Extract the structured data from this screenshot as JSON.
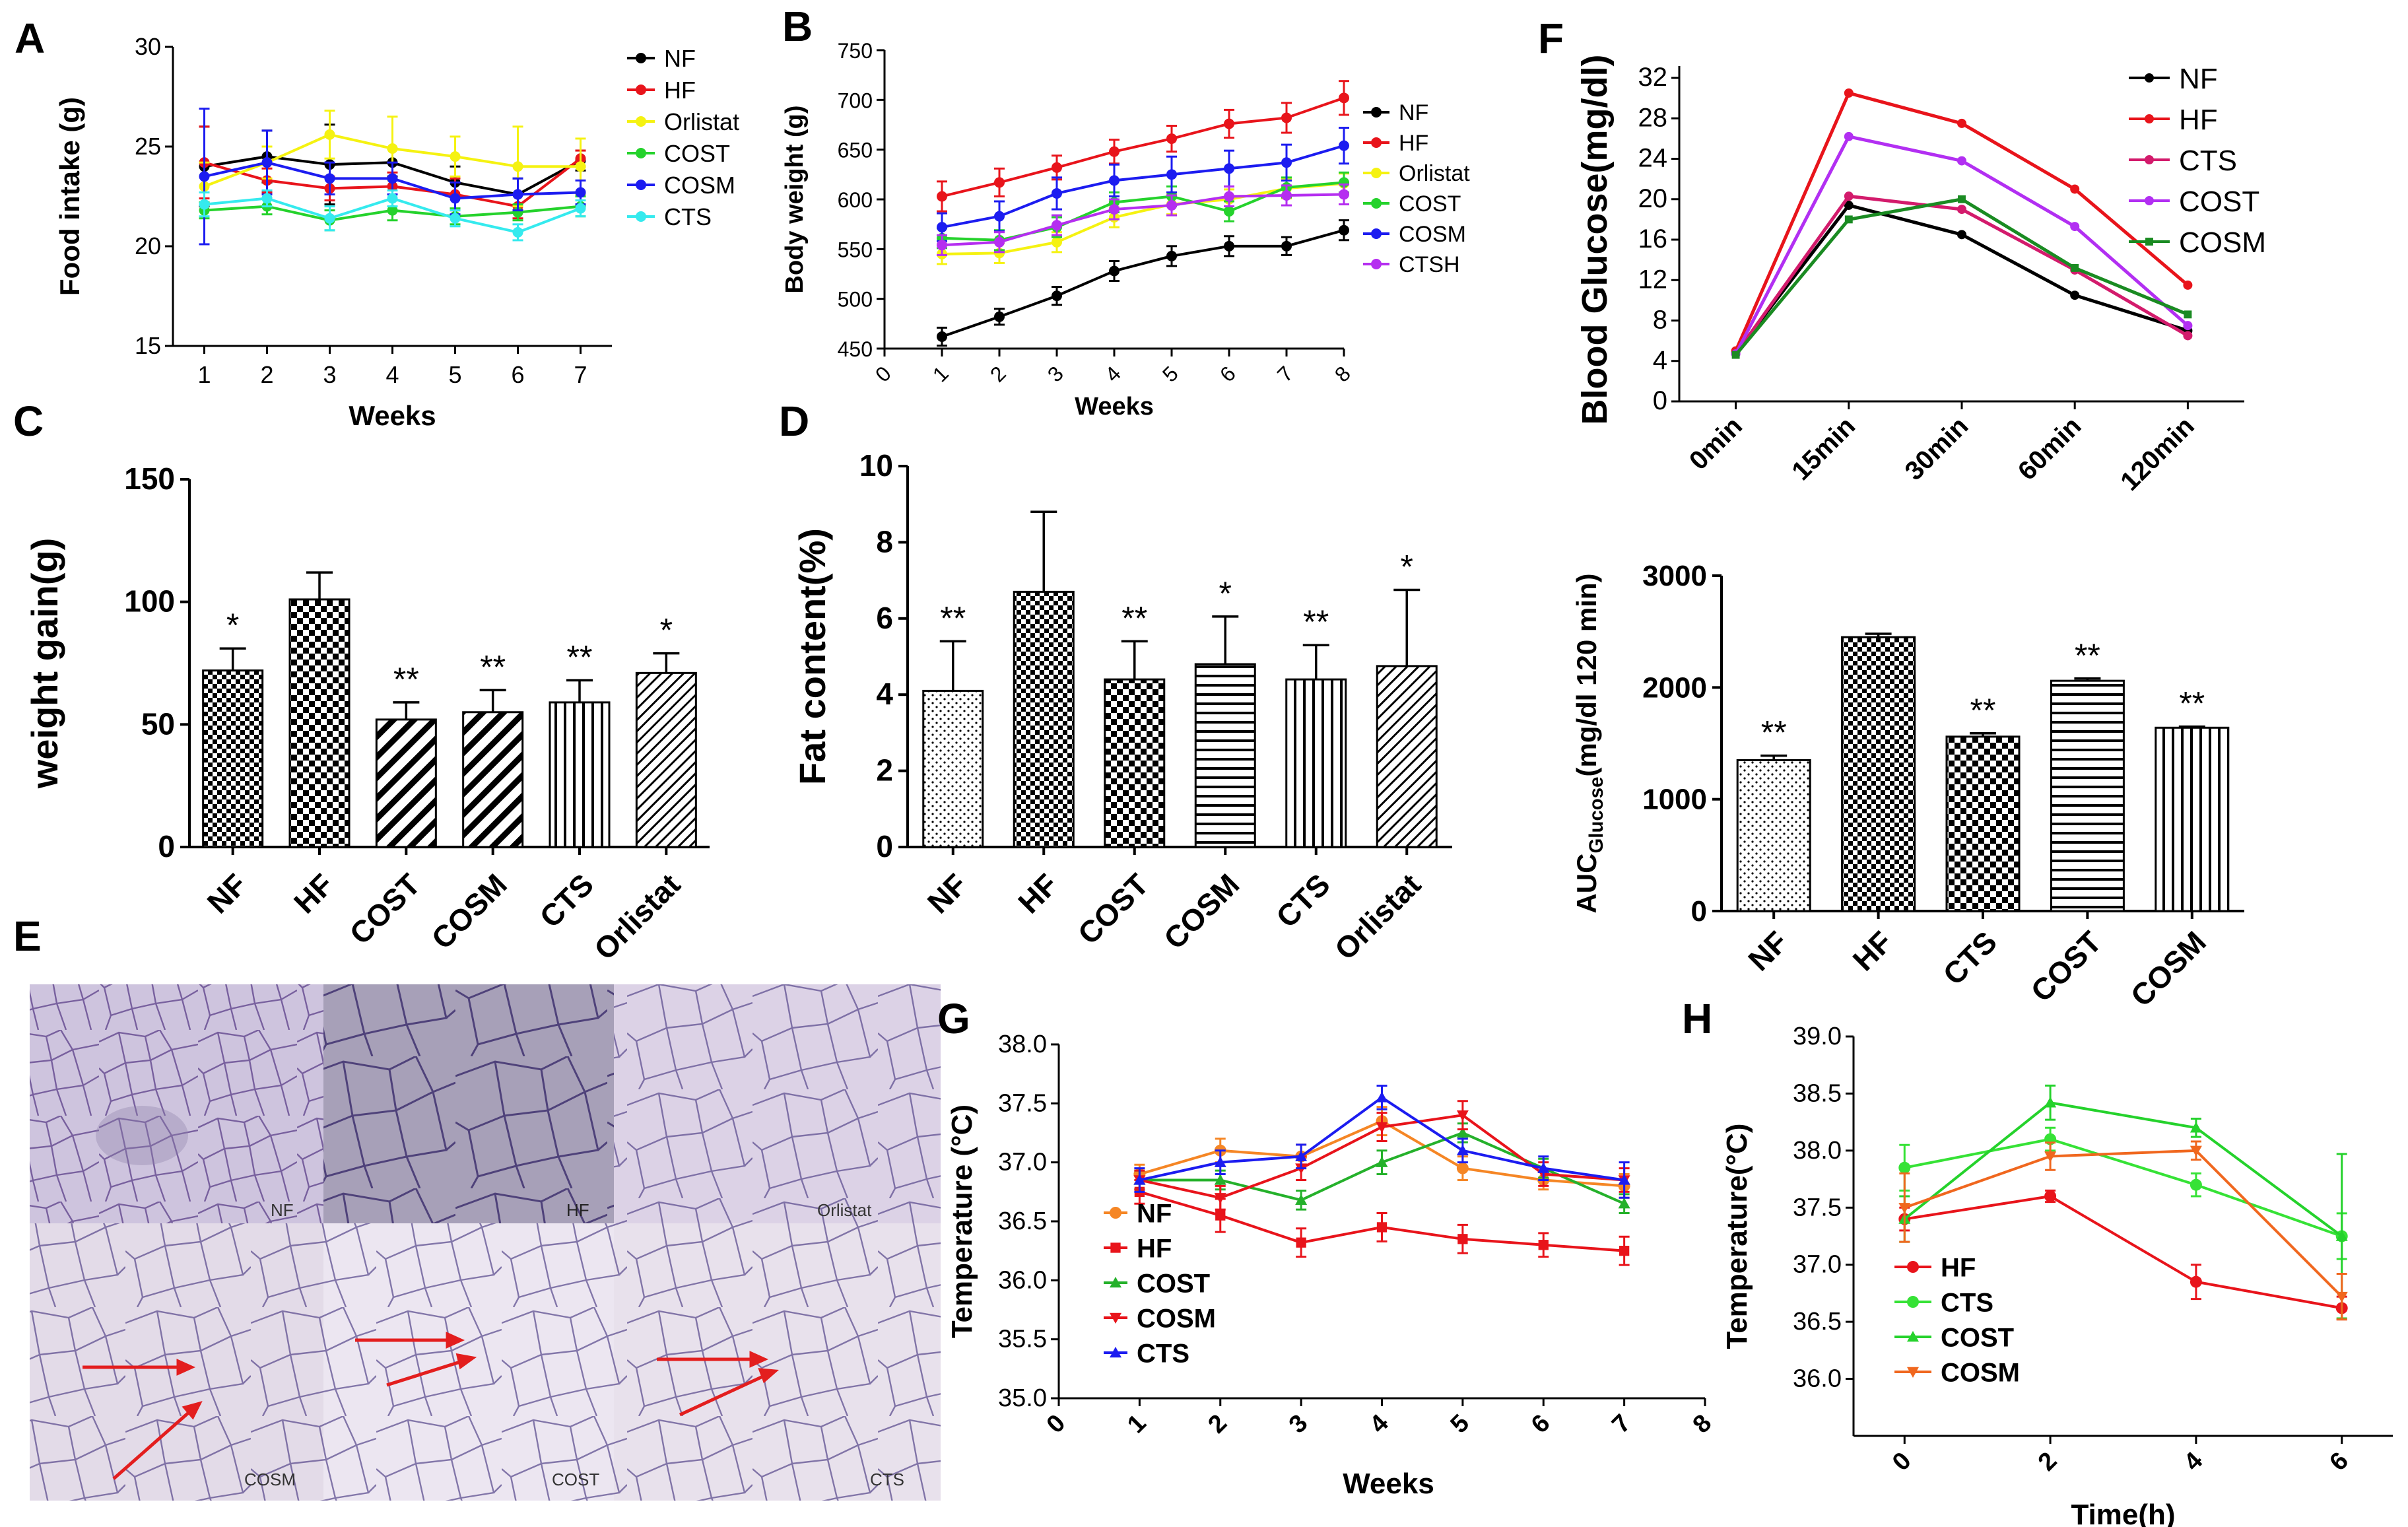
{
  "figure": {
    "panel_labels": [
      "A",
      "B",
      "C",
      "D",
      "E",
      "F",
      "G",
      "H"
    ],
    "micrograph_labels": [
      "NF",
      "HF",
      "Orlistat",
      "COSM",
      "COST",
      "CTS"
    ]
  },
  "colors": {
    "NF": "#000000",
    "HF": "#e8141b",
    "Orlistat": "#f5f211",
    "COST": "#25d22c",
    "COSM": "#1c1cf0",
    "CTS": "#35eaee",
    "CTSH": "#b52ef0",
    "CTS_F": "#d31b6c",
    "COST_F": "#b22ff2",
    "COSM_F": "#1a8b22",
    "NF_G": "#f58625",
    "COST_G": "#25b12b",
    "COSM_G": "#e8141b",
    "CTS_G": "#1c1cf0",
    "CTS_H": "#36e236",
    "COSM_H": "#f0671e",
    "arrow": "#e31e1e"
  },
  "chart_data": [
    {
      "id": "A",
      "type": "line",
      "xlabel": "Weeks",
      "ylabel": "Food intake (g)",
      "x": [
        1,
        2,
        3,
        4,
        5,
        6,
        7
      ],
      "xlim": [
        0.5,
        7.5
      ],
      "ylim": [
        15,
        30
      ],
      "yticks": [
        15,
        20,
        25,
        30
      ],
      "series": [
        {
          "name": "NF",
          "values": [
            24.0,
            24.5,
            24.1,
            24.2,
            23.2,
            22.6,
            24.3
          ],
          "err": [
            2.0,
            1.3,
            2.0,
            0.7,
            0.8,
            0.8,
            0.5
          ]
        },
        {
          "name": "HF",
          "values": [
            24.2,
            23.3,
            22.9,
            23.0,
            22.6,
            22.0,
            24.4
          ],
          "err": [
            1.8,
            0.6,
            0.6,
            0.7,
            0.8,
            0.6,
            0.4
          ]
        },
        {
          "name": "Orlistat",
          "values": [
            23.0,
            24.2,
            25.6,
            24.9,
            24.5,
            24.0,
            24.0
          ],
          "err": [
            1.2,
            0.8,
            1.2,
            1.6,
            1.0,
            2.0,
            1.4
          ]
        },
        {
          "name": "COST",
          "values": [
            21.8,
            22.0,
            21.3,
            21.8,
            21.5,
            21.7,
            22.0
          ],
          "err": [
            0.4,
            0.4,
            0.5,
            0.5,
            0.4,
            0.4,
            0.5
          ]
        },
        {
          "name": "COSM",
          "values": [
            23.5,
            24.2,
            23.4,
            23.4,
            22.4,
            22.6,
            22.7
          ],
          "err": [
            3.4,
            1.6,
            0.8,
            0.8,
            0.8,
            0.8,
            0.6
          ]
        },
        {
          "name": "CTS",
          "values": [
            22.1,
            22.4,
            21.4,
            22.4,
            21.4,
            20.7,
            21.9
          ],
          "err": [
            0.6,
            0.4,
            0.6,
            0.4,
            0.4,
            0.4,
            0.4
          ]
        }
      ]
    },
    {
      "id": "B",
      "type": "line",
      "xlabel": "Weeks",
      "ylabel": "Body weight (g)",
      "x": [
        1,
        2,
        3,
        4,
        5,
        6,
        7,
        8
      ],
      "xlim": [
        0,
        8
      ],
      "xticks": [
        0,
        1,
        2,
        3,
        4,
        5,
        6,
        7,
        8
      ],
      "ylim": [
        450,
        750
      ],
      "yticks": [
        450,
        500,
        550,
        600,
        650,
        700,
        750
      ],
      "series": [
        {
          "name": "NF",
          "values": [
            462,
            482,
            503,
            528,
            543,
            553,
            553,
            569
          ],
          "err": [
            9,
            8,
            9,
            10,
            10,
            10,
            9,
            10
          ]
        },
        {
          "name": "HF",
          "values": [
            603,
            617,
            632,
            648,
            661,
            676,
            682,
            702
          ],
          "err": [
            15,
            14,
            12,
            12,
            13,
            14,
            15,
            17
          ]
        },
        {
          "name": "Orlistat",
          "values": [
            545,
            546,
            557,
            582,
            595,
            600,
            611,
            616
          ],
          "err": [
            10,
            10,
            10,
            10,
            10,
            10,
            10,
            10
          ]
        },
        {
          "name": "COST",
          "values": [
            561,
            559,
            572,
            597,
            603,
            588,
            612,
            617
          ],
          "err": [
            10,
            10,
            10,
            10,
            10,
            10,
            10,
            10
          ]
        },
        {
          "name": "COSM",
          "values": [
            572,
            583,
            606,
            619,
            625,
            631,
            637,
            654
          ],
          "err": [
            14,
            15,
            16,
            16,
            18,
            18,
            18,
            18
          ]
        },
        {
          "name": "CTSH",
          "values": [
            554,
            557,
            574,
            590,
            594,
            603,
            604,
            605
          ],
          "err": [
            10,
            10,
            10,
            10,
            10,
            10,
            10,
            10
          ]
        }
      ]
    },
    {
      "id": "C",
      "type": "bar",
      "ylabel": "weight gain(g)",
      "categories": [
        "NF",
        "HF",
        "COST",
        "COSM",
        "CTS",
        "Orlistat"
      ],
      "values": [
        72,
        101,
        52,
        55,
        59,
        71
      ],
      "err": [
        9,
        11,
        7,
        9,
        9,
        8
      ],
      "significance": [
        "*",
        "",
        "**",
        "**",
        "**",
        "*"
      ],
      "patterns": [
        "grid",
        "check",
        "diagRight",
        "diagRight",
        "vlines",
        "diagThin"
      ],
      "ylim": [
        0,
        150
      ],
      "yticks": [
        0,
        50,
        100,
        150
      ]
    },
    {
      "id": "D",
      "type": "bar",
      "ylabel": "Fat content(%)",
      "categories": [
        "NF",
        "HF",
        "COST",
        "COSM",
        "CTS",
        "Orlistat"
      ],
      "values": [
        4.1,
        6.7,
        4.4,
        4.8,
        4.4,
        4.75
      ],
      "err": [
        1.3,
        2.1,
        1.0,
        1.25,
        0.9,
        2.0
      ],
      "significance": [
        "**",
        "",
        "**",
        "*",
        "**",
        "*"
      ],
      "patterns": [
        "dots",
        "grid",
        "check",
        "hlines",
        "vlines",
        "diagThin"
      ],
      "ylim": [
        0,
        10
      ],
      "yticks": [
        0,
        2,
        4,
        6,
        8,
        10
      ]
    },
    {
      "id": "F-top",
      "type": "line",
      "ylabel": "Blood Glucose(mg/dl)",
      "categories": [
        "0min",
        "15min",
        "30min",
        "60min",
        "120min"
      ],
      "ylim": [
        0,
        32
      ],
      "yticks": [
        0,
        4,
        8,
        12,
        16,
        20,
        24,
        28,
        32
      ],
      "series": [
        {
          "name": "NF",
          "values": [
            4.8,
            19.4,
            16.5,
            10.5,
            7.0
          ]
        },
        {
          "name": "HF",
          "values": [
            5.0,
            30.5,
            27.5,
            21.0,
            11.5
          ]
        },
        {
          "name": "CTS",
          "values": [
            4.7,
            20.3,
            19.0,
            13.0,
            6.5
          ]
        },
        {
          "name": "COST",
          "values": [
            4.7,
            26.2,
            23.8,
            17.3,
            7.5
          ]
        },
        {
          "name": "COSM",
          "values": [
            4.6,
            18.0,
            20.0,
            13.2,
            8.6
          ]
        }
      ]
    },
    {
      "id": "F-bottom",
      "type": "bar",
      "ylabel": "AUC",
      "ylabel_sub": "Glucose",
      "ylabel_unit": "(mg/dl 120 min)",
      "categories": [
        "NF",
        "HF",
        "CTS",
        "COST",
        "COSM"
      ],
      "values": [
        1350,
        2450,
        1560,
        2060,
        1640
      ],
      "err": [
        40,
        30,
        30,
        20,
        10
      ],
      "significance": [
        "**",
        "",
        "**",
        "**",
        "**"
      ],
      "patterns": [
        "dots",
        "grid",
        "check",
        "hlines",
        "vlines"
      ],
      "ylim": [
        0,
        3000
      ],
      "yticks": [
        0,
        1000,
        2000,
        3000
      ]
    },
    {
      "id": "G",
      "type": "line",
      "xlabel": "Weeks",
      "ylabel": "Temperature (°C)",
      "x": [
        1,
        2,
        3,
        4,
        5,
        6,
        7
      ],
      "xlim": [
        0,
        8
      ],
      "xticks": [
        0,
        1,
        2,
        3,
        4,
        5,
        6,
        7,
        8
      ],
      "ylim": [
        35.0,
        38.0
      ],
      "yticks": [
        "35.0",
        "35.5",
        "36.0",
        "36.5",
        "37.0",
        "37.5",
        "38.0"
      ],
      "series": [
        {
          "name": "NF",
          "values": [
            36.9,
            37.1,
            37.05,
            37.35,
            36.95,
            36.85,
            36.8
          ],
          "err": [
            0.08,
            0.1,
            0.1,
            0.12,
            0.1,
            0.08,
            0.1
          ]
        },
        {
          "name": "HF",
          "values": [
            36.75,
            36.55,
            36.32,
            36.45,
            36.35,
            36.3,
            36.25
          ],
          "err": [
            0.1,
            0.14,
            0.12,
            0.12,
            0.12,
            0.1,
            0.12
          ]
        },
        {
          "name": "COST",
          "values": [
            36.85,
            36.85,
            36.68,
            37.0,
            37.25,
            36.95,
            36.65
          ],
          "err": [
            0.08,
            0.08,
            0.08,
            0.1,
            0.08,
            0.08,
            0.08
          ]
        },
        {
          "name": "COSM",
          "values": [
            36.85,
            36.7,
            36.95,
            37.3,
            37.4,
            36.9,
            36.85
          ],
          "err": [
            0.08,
            0.1,
            0.1,
            0.12,
            0.12,
            0.1,
            0.1
          ]
        },
        {
          "name": "CTS",
          "values": [
            36.85,
            37.0,
            37.05,
            37.55,
            37.1,
            36.95,
            36.85
          ],
          "err": [
            0.1,
            0.1,
            0.1,
            0.1,
            0.1,
            0.1,
            0.15
          ]
        }
      ]
    },
    {
      "id": "H",
      "type": "line",
      "xlabel": "Time(h)",
      "ylabel": "Temperature(°C)",
      "x": [
        0,
        2,
        4,
        6
      ],
      "xlim": [
        -0.7,
        6.7
      ],
      "xticks": [
        0,
        2,
        4,
        6
      ],
      "ylim": [
        35.5,
        39.0
      ],
      "yticks": [
        "36.0",
        "36.5",
        "37.0",
        "37.5",
        "38.0",
        "38.5",
        "39.0"
      ],
      "series": [
        {
          "name": "HF",
          "values": [
            37.4,
            37.6,
            36.85,
            36.62
          ],
          "err": [
            0.1,
            0.05,
            0.15,
            0.1
          ]
        },
        {
          "name": "CTS",
          "values": [
            37.85,
            38.1,
            37.7,
            37.25
          ],
          "err": [
            0.2,
            0.1,
            0.1,
            0.2
          ]
        },
        {
          "name": "COST",
          "values": [
            37.4,
            38.42,
            38.2,
            37.25
          ],
          "err": [
            0.2,
            0.15,
            0.08,
            0.72
          ]
        },
        {
          "name": "COSM",
          "values": [
            37.5,
            37.95,
            38.0,
            36.72
          ],
          "err": [
            0.3,
            0.12,
            0.08,
            0.2
          ]
        }
      ]
    }
  ]
}
